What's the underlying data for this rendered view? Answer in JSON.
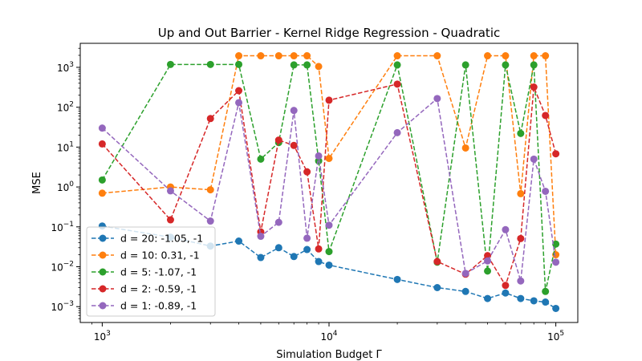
{
  "chart_data": {
    "type": "line",
    "title": "Up and Out Barrier - Kernel Ridge Regression - Quadratic",
    "xlabel": "Simulation Budget Γ",
    "ylabel": "MSE",
    "xscale": "log",
    "yscale": "log",
    "xlim": [
      800,
      125000
    ],
    "ylim": [
      0.0004,
      4000
    ],
    "x_ticks": [
      {
        "value": 1000,
        "base": "10",
        "exp": "3"
      },
      {
        "value": 10000,
        "base": "10",
        "exp": "4"
      },
      {
        "value": 100000,
        "base": "10",
        "exp": "5"
      }
    ],
    "y_ticks": [
      {
        "value": 0.001,
        "base": "10",
        "exp": "−3"
      },
      {
        "value": 0.01,
        "base": "10",
        "exp": "−2"
      },
      {
        "value": 0.1,
        "base": "10",
        "exp": "−1"
      },
      {
        "value": 1,
        "base": "10",
        "exp": "0"
      },
      {
        "value": 10,
        "base": "10",
        "exp": "1"
      },
      {
        "value": 100,
        "base": "10",
        "exp": "2"
      },
      {
        "value": 1000,
        "base": "10",
        "exp": "3"
      }
    ],
    "x": [
      1000,
      2000,
      3000,
      4000,
      5000,
      6000,
      7000,
      8000,
      9000,
      10000,
      20000,
      30000,
      40000,
      50000,
      60000,
      70000,
      80000,
      90000,
      100000
    ],
    "legend_position": "lower-left",
    "series": [
      {
        "name": "d = 20: -1.05, -1",
        "color": "#1f77b4",
        "values": [
          0.105,
          0.055,
          0.033,
          0.044,
          0.017,
          0.03,
          0.018,
          0.027,
          0.0135,
          0.011,
          0.0048,
          0.003,
          0.0024,
          0.0016,
          0.0022,
          0.0016,
          0.0014,
          0.0013,
          0.0009
        ]
      },
      {
        "name": "d = 10: 0.31, -1",
        "color": "#ff7f0e",
        "values": [
          0.7,
          1.0,
          0.85,
          1950,
          1950,
          1950,
          1950,
          1950,
          1050,
          5.2,
          1950,
          1950,
          9.5,
          1950,
          1950,
          0.68,
          1950,
          1950,
          0.02
        ]
      },
      {
        "name": "d = 5: -1.07, -1",
        "color": "#2ca02c",
        "values": [
          1.5,
          1180,
          1180,
          1180,
          5.0,
          13.0,
          1150,
          1150,
          4.5,
          0.024,
          1150,
          0.013,
          1150,
          0.0078,
          1150,
          22.0,
          1150,
          0.0024,
          0.037
        ]
      },
      {
        "name": "d = 2: -0.59, -1",
        "color": "#d62728",
        "values": [
          12.0,
          0.15,
          52.0,
          260.0,
          0.075,
          15.0,
          11.0,
          2.4,
          0.028,
          150.0,
          380.0,
          0.0135,
          0.0065,
          0.019,
          0.0034,
          0.051,
          320.0,
          62.0,
          6.8
        ]
      },
      {
        "name": "d = 1: -0.89, -1",
        "color": "#9467bd",
        "values": [
          30.0,
          0.8,
          0.14,
          130.0,
          0.058,
          0.13,
          83.0,
          0.052,
          6.0,
          0.11,
          23.0,
          165.0,
          0.0068,
          0.014,
          0.085,
          0.0044,
          5.0,
          0.78,
          0.013
        ]
      }
    ]
  }
}
